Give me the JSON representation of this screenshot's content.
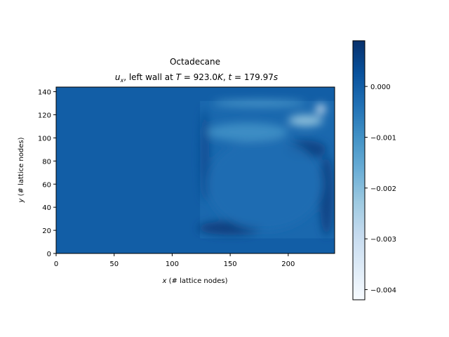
{
  "chart_data": {
    "type": "heatmap",
    "title": "Octadecane",
    "subtitle": {
      "var": "u",
      "var_sub": "x",
      "middle": ", left wall at ",
      "T_sym": "T",
      "T_eq": " = 923.0",
      "T_unit": "K",
      "sep": ", ",
      "t_sym": "t",
      "t_eq": " = 179.97",
      "t_unit": "s"
    },
    "xlabel": {
      "sym": "x",
      "rest": " (# lattice nodes)"
    },
    "ylabel": {
      "sym": "y",
      "rest": " (# lattice nodes)"
    },
    "xlim": [
      0,
      240
    ],
    "ylim": [
      0,
      144
    ],
    "xticks": [
      0,
      50,
      100,
      150,
      200
    ],
    "yticks": [
      0,
      20,
      40,
      60,
      80,
      100,
      120,
      140
    ],
    "colorbar": {
      "colormap": "Blues",
      "vmin": -0.0042,
      "vmax": 0.0009,
      "ticks": [
        "0.000",
        "−0.001",
        "−0.002",
        "−0.003",
        "−0.004"
      ],
      "tick_values": [
        0.0,
        -0.001,
        -0.002,
        -0.003,
        -0.004
      ]
    },
    "background_value": 0.0,
    "liquid_region": {
      "x": [
        124,
        240
      ],
      "y": [
        13,
        132
      ]
    },
    "features": [
      {
        "cx": 150,
        "cy": 22,
        "rx": 28,
        "ry": 6,
        "value": 0.0007
      },
      {
        "cx": 215,
        "cy": 90,
        "rx": 18,
        "ry": 8,
        "value": 0.0006
      },
      {
        "cx": 233,
        "cy": 50,
        "rx": 6,
        "ry": 35,
        "value": 0.0006
      },
      {
        "cx": 128,
        "cy": 85,
        "rx": 4,
        "ry": 40,
        "value": 0.0004
      },
      {
        "cx": 180,
        "cy": 60,
        "rx": 50,
        "ry": 40,
        "value": -0.0003
      },
      {
        "cx": 175,
        "cy": 130,
        "rx": 40,
        "ry": 3,
        "value": -0.0012
      },
      {
        "cx": 215,
        "cy": 115,
        "rx": 15,
        "ry": 5,
        "value": -0.0022
      },
      {
        "cx": 228,
        "cy": 125,
        "rx": 4,
        "ry": 4,
        "value": -0.004
      },
      {
        "cx": 165,
        "cy": 105,
        "rx": 35,
        "ry": 8,
        "value": -0.001
      }
    ]
  },
  "colors": {
    "background_cell": "#1361ab",
    "axes": "#000000"
  }
}
